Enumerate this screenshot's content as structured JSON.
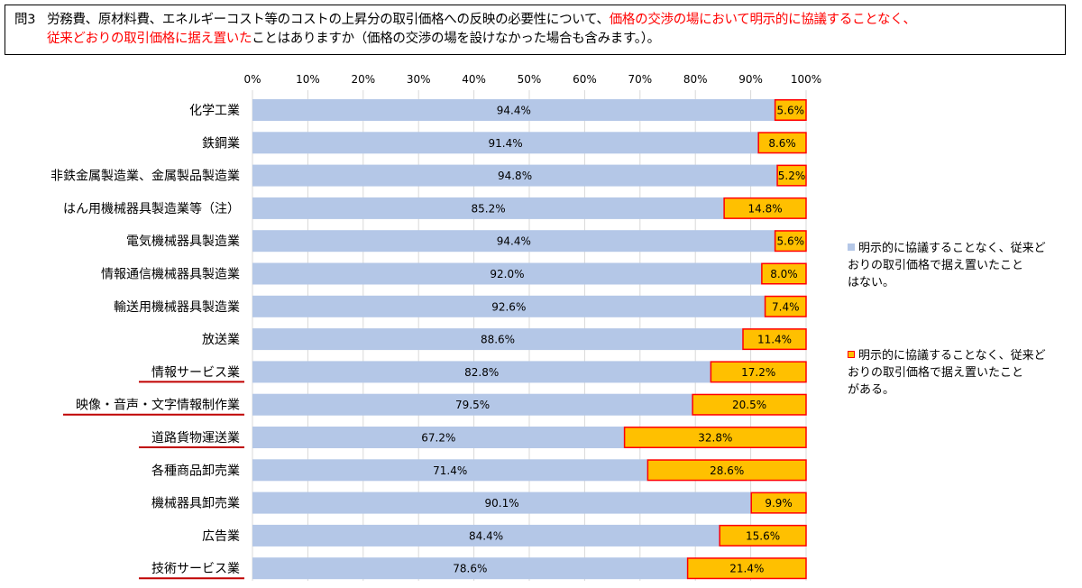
{
  "question": {
    "label": "問3",
    "text_part1": "労務費、原材料費、エネルギーコスト等のコストの上昇分の取引価格への反映の必要性について、",
    "text_red1": "価格の交渉の場において明示的に協議することなく、",
    "text_red2": "従来どおりの取引価格に据え置いた",
    "text_part2": "ことはありますか（価格の交渉の場を設けなかった場合も含みます。）。"
  },
  "legend": {
    "item1_line1": "明示的に協議することなく、従来ど",
    "item1_line2": "おりの取引価格で据え置いたこと",
    "item1_line3": "はない。",
    "item2_line1": "明示的に協議することなく、従来ど",
    "item2_line2": "おりの取引価格で据え置いたこと",
    "item2_line3": "がある。"
  },
  "colors": {
    "series1": "#b4c7e7",
    "series2": "#ffc000",
    "series2_border": "#ff0000",
    "underline": "#c00000"
  },
  "chart_data": {
    "type": "bar",
    "orientation": "horizontal",
    "stacked": true,
    "x_ticks": [
      "0%",
      "10%",
      "20%",
      "30%",
      "40%",
      "50%",
      "60%",
      "70%",
      "80%",
      "90%",
      "100%"
    ],
    "xlim": [
      0,
      100
    ],
    "categories": [
      "化学工業",
      "鉄鋼業",
      "非鉄金属製造業、金属製品製造業",
      "はん用機械器具製造業等（注）",
      "電気機械器具製造業",
      "情報通信機械器具製造業",
      "輸送用機械器具製造業",
      "放送業",
      "情報サービス業",
      "映像・音声・文字情報制作業",
      "道路貨物運送業",
      "各種商品卸売業",
      "機械器具卸売業",
      "広告業",
      "技術サービス業"
    ],
    "underlined_categories": [
      8,
      9,
      10,
      14
    ],
    "series": [
      {
        "name": "明示的に協議することなく、従来どおりの取引価格で据え置いたことはない。",
        "values": [
          94.4,
          91.4,
          94.8,
          85.2,
          94.4,
          92.0,
          92.6,
          88.6,
          82.8,
          79.5,
          67.2,
          71.4,
          90.1,
          84.4,
          78.6
        ],
        "labels": [
          "94.4%",
          "91.4%",
          "94.8%",
          "85.2%",
          "94.4%",
          "92.0%",
          "92.6%",
          "88.6%",
          "82.8%",
          "79.5%",
          "67.2%",
          "71.4%",
          "90.1%",
          "84.4%",
          "78.6%"
        ]
      },
      {
        "name": "明示的に協議することなく、従来どおりの取引価格で据え置いたことがある。",
        "values": [
          5.6,
          8.6,
          5.2,
          14.8,
          5.6,
          8.0,
          7.4,
          11.4,
          17.2,
          20.5,
          32.8,
          28.6,
          9.9,
          15.6,
          21.4
        ],
        "labels": [
          "5.6%",
          "8.6%",
          "5.2%",
          "14.8%",
          "5.6%",
          "8.0%",
          "7.4%",
          "11.4%",
          "17.2%",
          "20.5%",
          "32.8%",
          "28.6%",
          "9.9%",
          "15.6%",
          "21.4%"
        ]
      }
    ],
    "legend_position": "right"
  }
}
